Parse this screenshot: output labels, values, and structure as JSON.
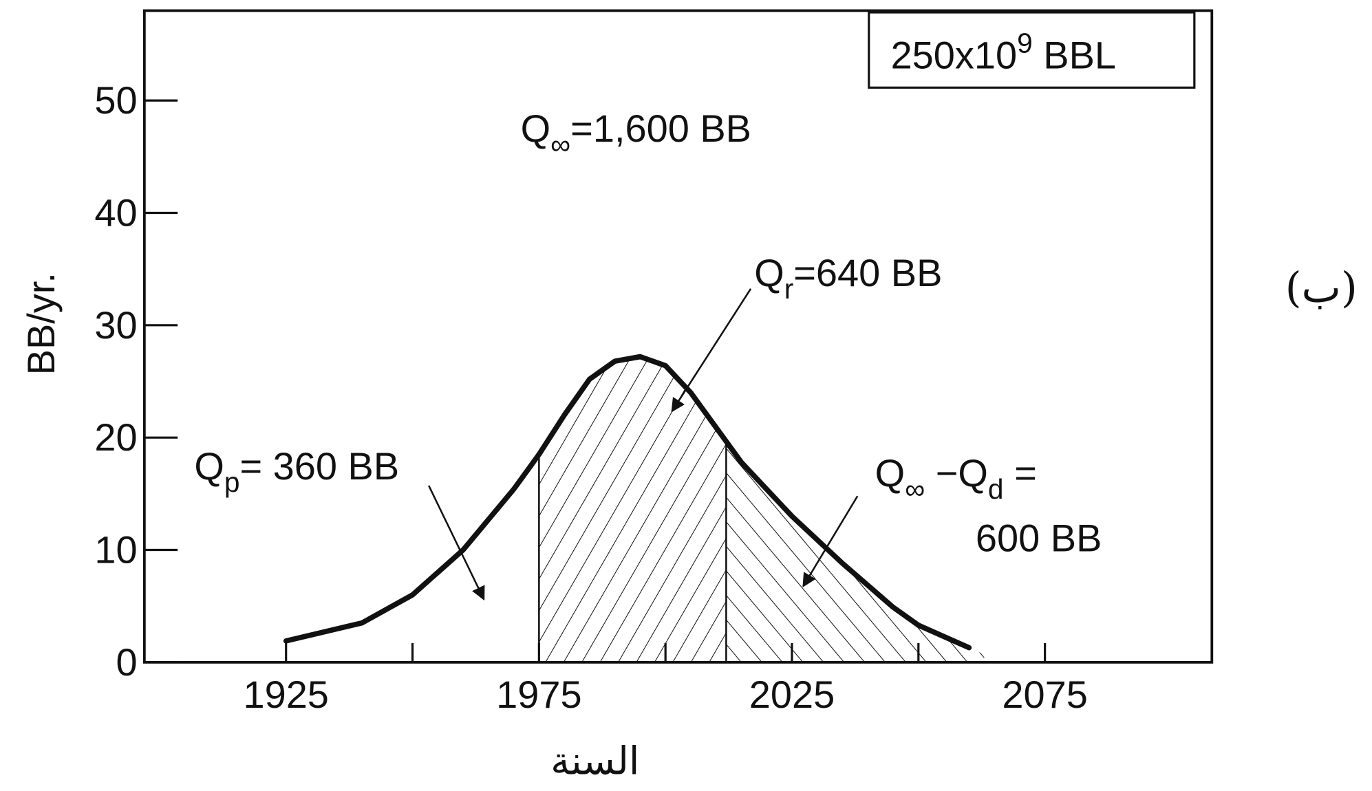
{
  "chart_data": {
    "type": "line",
    "x": [
      1925,
      1940,
      1950,
      1960,
      1970,
      1975,
      1980,
      1985,
      1990,
      1995,
      2000,
      2005,
      2010,
      2015,
      2025,
      2035,
      2045,
      2050,
      2060
    ],
    "values": [
      1.9,
      3.5,
      6,
      10,
      15.4,
      18.5,
      22,
      25.2,
      26.8,
      27.2,
      26.4,
      24,
      20.9,
      17.8,
      13,
      8.8,
      4.9,
      3.3,
      1.3
    ],
    "color": "#111111",
    "xlim": [
      1897,
      2108
    ],
    "xticks": [
      1925,
      1975,
      2025,
      2075
    ],
    "xminor_ticks": [
      1950,
      2000,
      2050
    ],
    "ylim": [
      0,
      58
    ],
    "yticks": [
      0,
      10,
      20,
      30,
      40,
      50
    ],
    "ylabel": "BB/yr.",
    "xlabel": "السنة",
    "panel_label": "(ب)",
    "shaded_regions": [
      {
        "from": 1975,
        "to": 2012
      },
      {
        "from": 2012,
        "to": 2063
      }
    ],
    "box_label": {
      "text": "250x10",
      "sup": "9",
      "tail": " BBL"
    },
    "annotations": [
      {
        "parts": [
          {
            "text": "Q"
          },
          {
            "text": "∞",
            "sub": true
          },
          {
            "text": "=1,600 BB"
          }
        ]
      },
      {
        "parts": [
          {
            "text": "Q"
          },
          {
            "text": "r",
            "sub": true
          },
          {
            "text": "=640 BB"
          }
        ]
      },
      {
        "parts": [
          {
            "text": "Q"
          },
          {
            "text": "p",
            "sub": true
          },
          {
            "text": "= 360 BB"
          }
        ]
      },
      {
        "parts": [
          {
            "text": "Q"
          },
          {
            "text": "∞",
            "sub": true
          },
          {
            "text": " −Q"
          },
          {
            "text": "d",
            "sub": true
          },
          {
            "text": " ="
          }
        ]
      },
      {
        "parts": [
          {
            "text": "600 BB"
          }
        ]
      }
    ]
  }
}
